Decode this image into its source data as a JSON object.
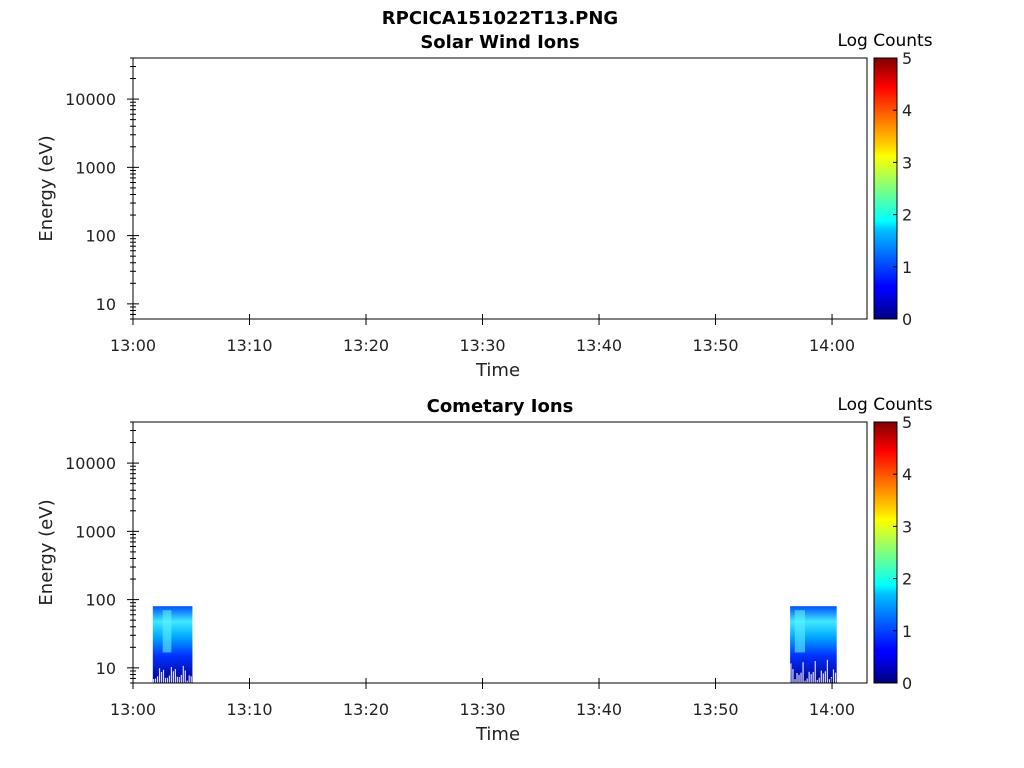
{
  "figure_title": "RPCICA151022T13.PNG",
  "colors": {
    "axis": "#000000",
    "spectrogram_low": "#000080",
    "spectrogram_high": "#00ffff"
  },
  "chart_data": [
    {
      "type": "heatmap",
      "title": "Solar Wind Ions",
      "xlabel": "Time",
      "ylabel": "Energy (eV)",
      "x_ticks": [
        "13:00",
        "13:10",
        "13:20",
        "13:30",
        "13:40",
        "13:50",
        "14:00"
      ],
      "xlim": [
        "13:00",
        "14:03"
      ],
      "y_ticks": [
        "10",
        "100",
        "1000",
        "10000"
      ],
      "y_scale": "log",
      "ylim": [
        6,
        40000
      ],
      "colorbar": {
        "label": "Log Counts",
        "ticks": [
          "0",
          "1",
          "2",
          "3",
          "4",
          "5"
        ],
        "range": [
          0,
          5
        ],
        "colormap": "jet"
      },
      "blocks": []
    },
    {
      "type": "heatmap",
      "title": "Cometary Ions",
      "xlabel": "Time",
      "ylabel": "Energy (eV)",
      "x_ticks": [
        "13:00",
        "13:10",
        "13:20",
        "13:30",
        "13:40",
        "13:50",
        "14:00"
      ],
      "xlim": [
        "13:00",
        "14:03"
      ],
      "y_ticks": [
        "10",
        "100",
        "1000",
        "10000"
      ],
      "y_scale": "log",
      "ylim": [
        6,
        40000
      ],
      "colorbar": {
        "label": "Log Counts",
        "ticks": [
          "0",
          "1",
          "2",
          "3",
          "4",
          "5"
        ],
        "range": [
          0,
          5
        ],
        "colormap": "jet"
      },
      "blocks": [
        {
          "t_start": "13:01.7",
          "t_end": "13:05.1",
          "e_min": 6,
          "e_max": 80,
          "log_counts_max": 1.8
        },
        {
          "t_start": "13:56.4",
          "t_end": "14:00.4",
          "e_min": 6,
          "e_max": 80,
          "log_counts_max": 1.8
        }
      ]
    }
  ]
}
